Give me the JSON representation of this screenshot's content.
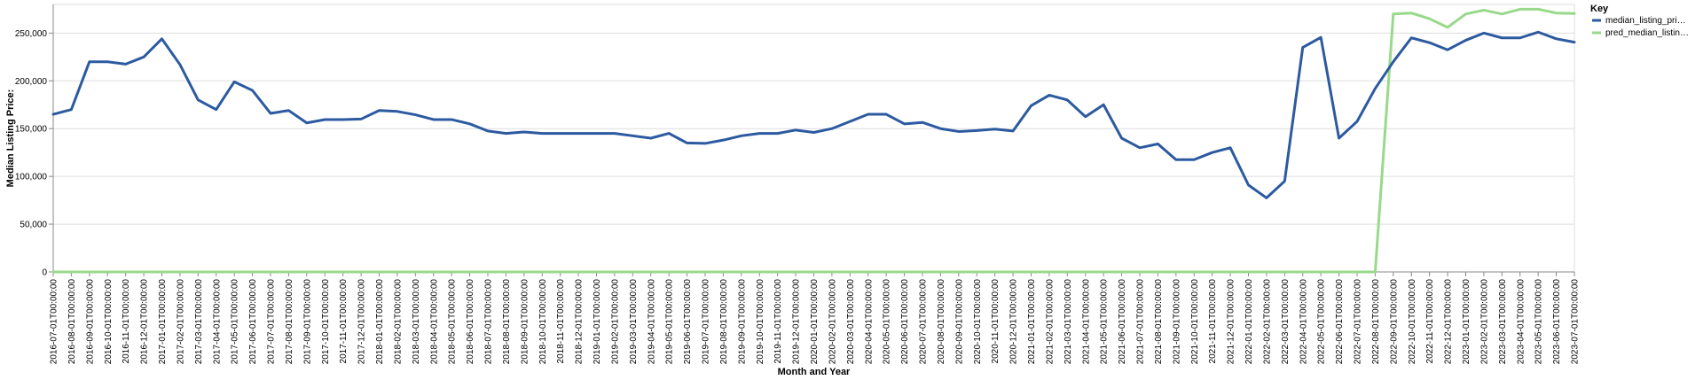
{
  "chart_data": {
    "type": "line",
    "xlabel": "Month and Year",
    "ylabel": "Median Listing Price:",
    "ylim": [
      0,
      280000
    ],
    "yticks": [
      "0",
      "50,000",
      "100,000",
      "150,000",
      "200,000",
      "250,000"
    ],
    "ytick_values": [
      0,
      50000,
      100000,
      150000,
      200000,
      250000
    ],
    "grid": true,
    "legend_title": "Key",
    "legend_position": "top-right",
    "categories": [
      "2016-07-01T00:00:00",
      "2016-08-01T00:00:00",
      "2016-09-01T00:00:00",
      "2016-10-01T00:00:00",
      "2016-11-01T00:00:00",
      "2016-12-01T00:00:00",
      "2017-01-01T00:00:00",
      "2017-02-01T00:00:00",
      "2017-03-01T00:00:00",
      "2017-04-01T00:00:00",
      "2017-05-01T00:00:00",
      "2017-06-01T00:00:00",
      "2017-07-01T00:00:00",
      "2017-08-01T00:00:00",
      "2017-09-01T00:00:00",
      "2017-10-01T00:00:00",
      "2017-11-01T00:00:00",
      "2017-12-01T00:00:00",
      "2018-01-01T00:00:00",
      "2018-02-01T00:00:00",
      "2018-03-01T00:00:00",
      "2018-04-01T00:00:00",
      "2018-05-01T00:00:00",
      "2018-06-01T00:00:00",
      "2018-07-01T00:00:00",
      "2018-08-01T00:00:00",
      "2018-09-01T00:00:00",
      "2018-10-01T00:00:00",
      "2018-11-01T00:00:00",
      "2018-12-01T00:00:00",
      "2019-01-01T00:00:00",
      "2019-02-01T00:00:00",
      "2019-03-01T00:00:00",
      "2019-04-01T00:00:00",
      "2019-05-01T00:00:00",
      "2019-06-01T00:00:00",
      "2019-07-01T00:00:00",
      "2019-08-01T00:00:00",
      "2019-09-01T00:00:00",
      "2019-10-01T00:00:00",
      "2019-11-01T00:00:00",
      "2019-12-01T00:00:00",
      "2020-01-01T00:00:00",
      "2020-02-01T00:00:00",
      "2020-03-01T00:00:00",
      "2020-04-01T00:00:00",
      "2020-05-01T00:00:00",
      "2020-06-01T00:00:00",
      "2020-07-01T00:00:00",
      "2020-08-01T00:00:00",
      "2020-09-01T00:00:00",
      "2020-10-01T00:00:00",
      "2020-11-01T00:00:00",
      "2020-12-01T00:00:00",
      "2021-01-01T00:00:00",
      "2021-02-01T00:00:00",
      "2021-03-01T00:00:00",
      "2021-04-01T00:00:00",
      "2021-05-01T00:00:00",
      "2021-06-01T00:00:00",
      "2021-07-01T00:00:00",
      "2021-08-01T00:00:00",
      "2021-09-01T00:00:00",
      "2021-10-01T00:00:00",
      "2021-11-01T00:00:00",
      "2021-12-01T00:00:00",
      "2022-01-01T00:00:00",
      "2022-02-01T00:00:00",
      "2022-03-01T00:00:00",
      "2022-04-01T00:00:00",
      "2022-05-01T00:00:00",
      "2022-06-01T00:00:00",
      "2022-07-01T00:00:00",
      "2022-08-01T00:00:00",
      "2022-09-01T00:00:00",
      "2022-10-01T00:00:00",
      "2022-11-01T00:00:00",
      "2022-12-01T00:00:00",
      "2023-01-01T00:00:00",
      "2023-02-01T00:00:00",
      "2023-03-01T00:00:00",
      "2023-04-01T00:00:00",
      "2023-05-01T00:00:00",
      "2023-06-01T00:00:00",
      "2023-07-01T00:00:00"
    ],
    "series": [
      {
        "name": "median_listing_pri…",
        "color": "#2c5aa0",
        "values": [
          165000,
          170000,
          220000,
          220000,
          217500,
          225000,
          244000,
          217000,
          180000,
          170000,
          199000,
          190000,
          166000,
          169000,
          156000,
          159500,
          159500,
          160000,
          169000,
          168000,
          164500,
          159500,
          159500,
          155000,
          147500,
          145000,
          146500,
          145000,
          145000,
          145000,
          145000,
          145000,
          142500,
          140000,
          145000,
          135000,
          134500,
          138000,
          142500,
          145000,
          145000,
          148500,
          146000,
          150000,
          157500,
          165000,
          165000,
          155000,
          156500,
          150000,
          147000,
          148000,
          149500,
          147500,
          174000,
          185000,
          180000,
          162500,
          175000,
          140000,
          130000,
          134000,
          117500,
          117500,
          125000,
          130000,
          91000,
          77500,
          95000,
          235000,
          245500,
          140000,
          157500,
          192000,
          220000,
          245000,
          240000,
          232500,
          242500,
          250000,
          245000,
          245000,
          251000,
          244000,
          240500
        ]
      },
      {
        "name": "pred_median_listin…",
        "color": "#98d98a",
        "values": [
          0,
          0,
          0,
          0,
          0,
          0,
          0,
          0,
          0,
          0,
          0,
          0,
          0,
          0,
          0,
          0,
          0,
          0,
          0,
          0,
          0,
          0,
          0,
          0,
          0,
          0,
          0,
          0,
          0,
          0,
          0,
          0,
          0,
          0,
          0,
          0,
          0,
          0,
          0,
          0,
          0,
          0,
          0,
          0,
          0,
          0,
          0,
          0,
          0,
          0,
          0,
          0,
          0,
          0,
          0,
          0,
          0,
          0,
          0,
          0,
          0,
          0,
          0,
          0,
          0,
          0,
          0,
          0,
          0,
          0,
          0,
          0,
          0,
          0,
          270000,
          271000,
          265000,
          256000,
          270000,
          274000,
          270000,
          275000,
          275000,
          271000,
          270500
        ]
      }
    ]
  }
}
